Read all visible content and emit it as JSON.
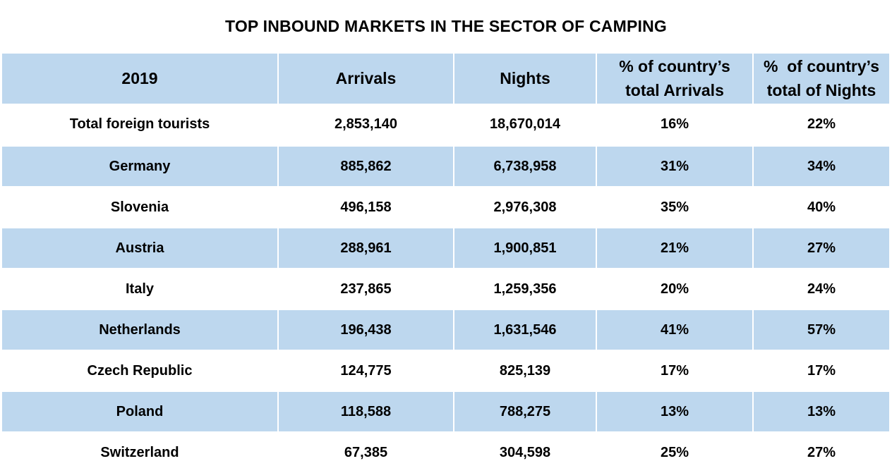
{
  "title": "TOP INBOUND MARKETS IN THE SECTOR OF CAMPING",
  "colors": {
    "header_bg": "#bdd7ee",
    "row_shade": "#bdd7ee"
  },
  "table": {
    "headers": [
      [
        "2019"
      ],
      [
        "Arrivals"
      ],
      [
        "Nights"
      ],
      [
        "% of country’s",
        "total Arrivals"
      ],
      [
        "%  of country’s",
        "total of Nights"
      ]
    ],
    "rows": [
      [
        "Total foreign tourists",
        "2,853,140",
        "18,670,014",
        "16%",
        "22%"
      ],
      [
        "Germany",
        "885,862",
        "6,738,958",
        "31%",
        "34%"
      ],
      [
        "Slovenia",
        "496,158",
        "2,976,308",
        "35%",
        "40%"
      ],
      [
        "Austria",
        "288,961",
        "1,900,851",
        "21%",
        "27%"
      ],
      [
        "Italy",
        "237,865",
        "1,259,356",
        "20%",
        "24%"
      ],
      [
        "Netherlands",
        "196,438",
        "1,631,546",
        "41%",
        "57%"
      ],
      [
        "Czech Republic",
        "124,775",
        "825,139",
        "17%",
        "17%"
      ],
      [
        "Poland",
        "118,588",
        "788,275",
        "13%",
        "13%"
      ],
      [
        "Switzerland",
        "67,385",
        "304,598",
        "25%",
        "27%"
      ]
    ]
  }
}
